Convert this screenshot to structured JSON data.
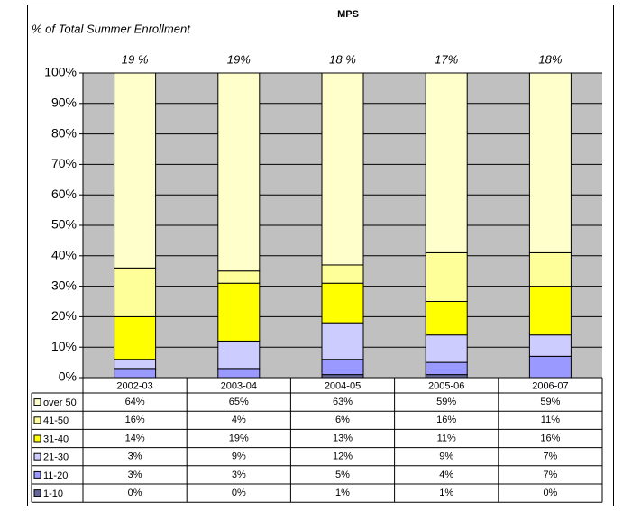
{
  "chart_data": {
    "type": "stacked_bar",
    "title": "MPS",
    "y_label": "% of Total  Summer Enrollment",
    "categories": [
      "2002-03",
      "2003-04",
      "2004-05",
      "2005-06",
      "2006-07"
    ],
    "annotations": [
      "19 %",
      "19%",
      "18 %",
      "17%",
      "18%"
    ],
    "series": [
      {
        "name": "over 50",
        "color": "#ffffcc",
        "values": [
          64,
          65,
          63,
          59,
          59
        ],
        "value_labels": [
          "64%",
          "65%",
          "63%",
          "59%",
          "59%"
        ]
      },
      {
        "name": "41-50",
        "color": "#ffff99",
        "values": [
          16,
          4,
          6,
          16,
          11
        ],
        "value_labels": [
          "16%",
          "4%",
          "6%",
          "16%",
          "11%"
        ]
      },
      {
        "name": "31-40",
        "color": "#ffff00",
        "values": [
          14,
          19,
          13,
          11,
          16
        ],
        "value_labels": [
          "14%",
          "19%",
          "13%",
          "11%",
          "16%"
        ]
      },
      {
        "name": "21-30",
        "color": "#ccccff",
        "values": [
          3,
          9,
          12,
          9,
          7
        ],
        "value_labels": [
          "3%",
          "9%",
          "12%",
          "9%",
          "7%"
        ]
      },
      {
        "name": "11-20",
        "color": "#9999ff",
        "values": [
          3,
          3,
          5,
          4,
          7
        ],
        "value_labels": [
          "3%",
          "3%",
          "5%",
          "4%",
          "7%"
        ]
      },
      {
        "name": "1-10",
        "color": "#666699",
        "values": [
          0,
          0,
          1,
          1,
          0
        ],
        "value_labels": [
          "0%",
          "0%",
          "1%",
          "1%",
          "0%"
        ]
      }
    ],
    "ylim": [
      0,
      100
    ],
    "yticks": [
      {
        "value": 0,
        "label": "0%"
      },
      {
        "value": 10,
        "label": "10%"
      },
      {
        "value": 20,
        "label": "20%"
      },
      {
        "value": 30,
        "label": "30%"
      },
      {
        "value": 40,
        "label": "40%"
      },
      {
        "value": 50,
        "label": "50%"
      },
      {
        "value": 60,
        "label": "60%"
      },
      {
        "value": 70,
        "label": "70%"
      },
      {
        "value": 80,
        "label": "80%"
      },
      {
        "value": 90,
        "label": "90%"
      },
      {
        "value": 100,
        "label": "100%"
      }
    ],
    "plot_background": "#c0c0c0",
    "grid": true
  }
}
